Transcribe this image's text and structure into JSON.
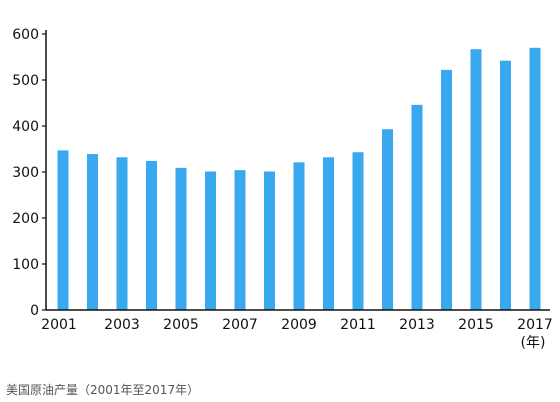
{
  "chart_data": {
    "type": "bar",
    "title": "",
    "xlabel": "",
    "ylabel": "",
    "x_unit": "(年)",
    "categories": [
      "2001",
      "2002",
      "2003",
      "2004",
      "2005",
      "2006",
      "2007",
      "2008",
      "2009",
      "2010",
      "2011",
      "2012",
      "2013",
      "2014",
      "2015",
      "2016",
      "2017"
    ],
    "x_tick_labels": [
      "2001",
      "2003",
      "2005",
      "2007",
      "2009",
      "2011",
      "2013",
      "2015",
      "2017"
    ],
    "values": [
      347,
      339,
      332,
      324,
      309,
      301,
      304,
      301,
      321,
      332,
      343,
      393,
      446,
      522,
      567,
      542,
      570
    ],
    "ylim": [
      0,
      600
    ],
    "y_ticks": [
      0,
      100,
      200,
      300,
      400,
      500,
      600
    ],
    "grid": false,
    "legend": "none",
    "bar_color": "#3aa8ee",
    "axis_color": "#111111"
  },
  "caption": "美国原油产量（2001年至2017年）"
}
